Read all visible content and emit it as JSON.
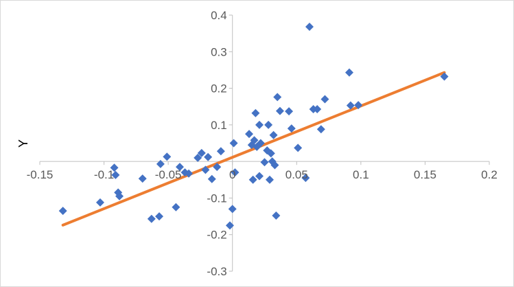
{
  "chart_data": {
    "type": "scatter",
    "title": "",
    "xlabel": "",
    "ylabel": "Y",
    "xlim": [
      -0.15,
      0.2
    ],
    "ylim": [
      -0.3,
      0.4
    ],
    "x_ticks": [
      "-0.15",
      "-0.1",
      "-0.05",
      "0",
      "0.05",
      "0.1",
      "0.15",
      "0.2"
    ],
    "y_ticks": [
      "-0.3",
      "-0.2",
      "-0.1",
      "0.1",
      "0.2",
      "0.3",
      "0.4"
    ],
    "grid": false,
    "legend": "none",
    "marker_color": "#4472c4",
    "trendline_color": "#ed7d31",
    "trendline": {
      "x": [
        -0.132,
        0.165
      ],
      "y": [
        -0.174,
        0.243
      ]
    },
    "points": [
      {
        "x": -0.132,
        "y": -0.135
      },
      {
        "x": -0.103,
        "y": -0.112
      },
      {
        "x": -0.092,
        "y": -0.017
      },
      {
        "x": -0.091,
        "y": -0.037
      },
      {
        "x": -0.089,
        "y": -0.085
      },
      {
        "x": -0.088,
        "y": -0.095
      },
      {
        "x": -0.07,
        "y": -0.047
      },
      {
        "x": -0.063,
        "y": -0.157
      },
      {
        "x": -0.057,
        "y": -0.15
      },
      {
        "x": -0.056,
        "y": -0.007
      },
      {
        "x": -0.051,
        "y": 0.013
      },
      {
        "x": -0.044,
        "y": -0.125
      },
      {
        "x": -0.041,
        "y": -0.015
      },
      {
        "x": -0.037,
        "y": -0.03
      },
      {
        "x": -0.034,
        "y": -0.033
      },
      {
        "x": -0.027,
        "y": 0.01
      },
      {
        "x": -0.024,
        "y": 0.023
      },
      {
        "x": -0.021,
        "y": -0.023
      },
      {
        "x": -0.019,
        "y": 0.012
      },
      {
        "x": -0.016,
        "y": -0.048
      },
      {
        "x": -0.012,
        "y": -0.015
      },
      {
        "x": -0.009,
        "y": 0.028
      },
      {
        "x": -0.002,
        "y": -0.175
      },
      {
        "x": 0.0,
        "y": -0.13
      },
      {
        "x": 0.001,
        "y": 0.05
      },
      {
        "x": 0.002,
        "y": -0.03
      },
      {
        "x": 0.013,
        "y": 0.075
      },
      {
        "x": 0.015,
        "y": 0.045
      },
      {
        "x": 0.016,
        "y": -0.05
      },
      {
        "x": 0.017,
        "y": 0.058
      },
      {
        "x": 0.018,
        "y": 0.132
      },
      {
        "x": 0.019,
        "y": 0.04
      },
      {
        "x": 0.021,
        "y": 0.1
      },
      {
        "x": 0.021,
        "y": -0.04
      },
      {
        "x": 0.022,
        "y": 0.05
      },
      {
        "x": 0.025,
        "y": -0.002
      },
      {
        "x": 0.027,
        "y": 0.03
      },
      {
        "x": 0.028,
        "y": 0.1
      },
      {
        "x": 0.029,
        "y": -0.05
      },
      {
        "x": 0.03,
        "y": 0.022
      },
      {
        "x": 0.031,
        "y": 0.0
      },
      {
        "x": 0.032,
        "y": 0.072
      },
      {
        "x": 0.033,
        "y": -0.01
      },
      {
        "x": 0.034,
        "y": -0.148
      },
      {
        "x": 0.035,
        "y": 0.176
      },
      {
        "x": 0.037,
        "y": 0.138
      },
      {
        "x": 0.044,
        "y": 0.137
      },
      {
        "x": 0.046,
        "y": 0.09
      },
      {
        "x": 0.051,
        "y": 0.037
      },
      {
        "x": 0.057,
        "y": -0.045
      },
      {
        "x": 0.06,
        "y": 0.368
      },
      {
        "x": 0.063,
        "y": 0.143
      },
      {
        "x": 0.066,
        "y": 0.143
      },
      {
        "x": 0.069,
        "y": 0.088
      },
      {
        "x": 0.072,
        "y": 0.17
      },
      {
        "x": 0.091,
        "y": 0.243
      },
      {
        "x": 0.092,
        "y": 0.153
      },
      {
        "x": 0.098,
        "y": 0.154
      },
      {
        "x": 0.165,
        "y": 0.232
      }
    ]
  }
}
